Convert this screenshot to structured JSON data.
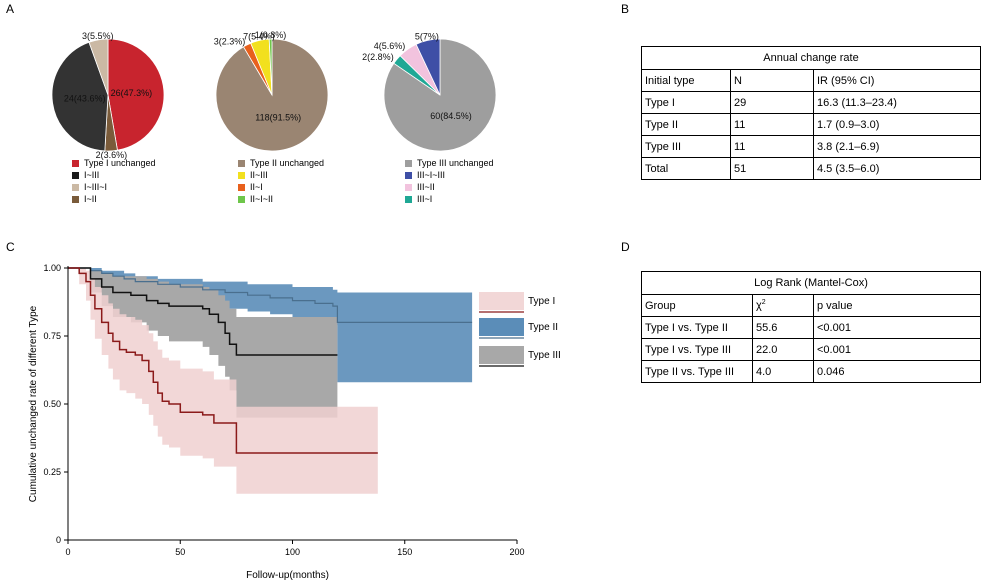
{
  "panels": {
    "a": "A",
    "b": "B",
    "c": "C",
    "d": "D"
  },
  "chart_data": [
    {
      "type": "pie",
      "slices": [
        {
          "label": "26(47.3%)",
          "value": 47.3,
          "color": "#c8242e"
        },
        {
          "label": "2(3.6%)",
          "value": 3.6,
          "color": "#7a5b3a"
        },
        {
          "label": "24(43.6%)",
          "value": 43.6,
          "color": "#333333"
        },
        {
          "label": "3(5.5%)",
          "value": 5.5,
          "color": "#cbb9a4"
        }
      ],
      "legend": [
        {
          "label": "Type I unchanged",
          "color": "#c8242e"
        },
        {
          "label": "I~III",
          "color": "#1a1a1a"
        },
        {
          "label": "I~III~I",
          "color": "#cbb9a4"
        },
        {
          "label": "I~II",
          "color": "#7a5b3a"
        }
      ]
    },
    {
      "type": "pie",
      "slices": [
        {
          "label": "118(91.5%)",
          "value": 91.5,
          "color": "#9a8572"
        },
        {
          "label": "3(2.3%)",
          "value": 2.3,
          "color": "#e8601c"
        },
        {
          "label": "7(5.4%)",
          "value": 5.4,
          "color": "#f2e01e"
        },
        {
          "label": "1(0.8%)",
          "value": 0.8,
          "color": "#6ec64a"
        }
      ],
      "legend": [
        {
          "label": "Type II unchanged",
          "color": "#9a8572"
        },
        {
          "label": "II~III",
          "color": "#f2e01e"
        },
        {
          "label": "II~I",
          "color": "#e8601c"
        },
        {
          "label": "II~I~II",
          "color": "#6ec64a"
        }
      ]
    },
    {
      "type": "pie",
      "slices": [
        {
          "label": "60(84.5%)",
          "value": 84.5,
          "color": "#9e9e9e"
        },
        {
          "label": "2(2.8%)",
          "value": 2.8,
          "color": "#1fa895"
        },
        {
          "label": "4(5.6%)",
          "value": 5.6,
          "color": "#f2c3de"
        },
        {
          "label": "5(7%)",
          "value": 7.0,
          "color": "#3e4fa6"
        }
      ],
      "legend": [
        {
          "label": "Type III unchanged",
          "color": "#9e9e9e"
        },
        {
          "label": "III~I~III",
          "color": "#3e4fa6"
        },
        {
          "label": "III~II",
          "color": "#f2c3de"
        },
        {
          "label": "III~I",
          "color": "#1fa895"
        }
      ]
    },
    {
      "type": "line",
      "subtype": "kaplan-meier",
      "xlabel": "Follow-up(months)",
      "ylabel": "Cumulative unchanged rate of different Type",
      "xlim": [
        0,
        200
      ],
      "ylim": [
        0,
        1.0
      ],
      "xticks": [
        "0",
        "50",
        "100",
        "150",
        "200"
      ],
      "yticks": [
        "0",
        "0.25",
        "0.50",
        "0.75",
        "1.00"
      ],
      "legend_position": "right",
      "series": [
        {
          "name": "Type I",
          "color": "#8b1a1a",
          "band_color": "#f0d0d0",
          "x": [
            0,
            5,
            8,
            10,
            12,
            15,
            18,
            20,
            23,
            26,
            30,
            33,
            36,
            38,
            40,
            42,
            45,
            50,
            55,
            60,
            65,
            70,
            75,
            80,
            100,
            120,
            138
          ],
          "y": [
            1.0,
            0.98,
            0.95,
            0.9,
            0.85,
            0.8,
            0.76,
            0.73,
            0.7,
            0.69,
            0.68,
            0.66,
            0.62,
            0.58,
            0.54,
            0.51,
            0.5,
            0.47,
            0.47,
            0.46,
            0.43,
            0.43,
            0.32,
            0.32,
            0.32,
            0.32,
            0.32
          ],
          "lower": [
            1.0,
            0.94,
            0.88,
            0.81,
            0.74,
            0.68,
            0.63,
            0.59,
            0.55,
            0.54,
            0.52,
            0.5,
            0.46,
            0.42,
            0.38,
            0.35,
            0.34,
            0.31,
            0.31,
            0.3,
            0.27,
            0.27,
            0.17,
            0.17,
            0.17,
            0.17,
            0.17
          ],
          "upper": [
            1.0,
            1.0,
            0.99,
            0.96,
            0.93,
            0.9,
            0.87,
            0.85,
            0.83,
            0.82,
            0.81,
            0.79,
            0.76,
            0.73,
            0.7,
            0.67,
            0.66,
            0.63,
            0.63,
            0.62,
            0.59,
            0.59,
            0.49,
            0.49,
            0.49,
            0.49,
            0.49
          ]
        },
        {
          "name": "Type II",
          "color": "#4a6f8e",
          "band_color": "#5b8db8",
          "x": [
            0,
            10,
            15,
            20,
            25,
            30,
            40,
            50,
            60,
            70,
            80,
            90,
            100,
            110,
            118,
            120,
            150,
            180
          ],
          "y": [
            1.0,
            0.99,
            0.98,
            0.97,
            0.96,
            0.95,
            0.94,
            0.93,
            0.92,
            0.91,
            0.9,
            0.89,
            0.88,
            0.87,
            0.86,
            0.8,
            0.8,
            0.8
          ],
          "lower": [
            1.0,
            0.98,
            0.96,
            0.94,
            0.92,
            0.91,
            0.89,
            0.88,
            0.86,
            0.85,
            0.84,
            0.83,
            0.81,
            0.8,
            0.79,
            0.58,
            0.58,
            0.58
          ],
          "upper": [
            1.0,
            1.0,
            0.99,
            0.99,
            0.98,
            0.97,
            0.96,
            0.96,
            0.95,
            0.95,
            0.94,
            0.94,
            0.93,
            0.93,
            0.92,
            0.91,
            0.91,
            0.91
          ]
        },
        {
          "name": "Type III",
          "color": "#111111",
          "band_color": "#a8a8a8",
          "x": [
            0,
            10,
            15,
            20,
            28,
            35,
            40,
            45,
            55,
            60,
            63,
            67,
            70,
            72,
            75,
            80,
            120
          ],
          "y": [
            1.0,
            0.96,
            0.93,
            0.91,
            0.9,
            0.88,
            0.87,
            0.86,
            0.86,
            0.85,
            0.83,
            0.8,
            0.76,
            0.72,
            0.68,
            0.68,
            0.68
          ],
          "lower": [
            1.0,
            0.91,
            0.86,
            0.82,
            0.8,
            0.77,
            0.75,
            0.73,
            0.73,
            0.71,
            0.68,
            0.64,
            0.6,
            0.55,
            0.45,
            0.45,
            0.45
          ],
          "upper": [
            1.0,
            0.99,
            0.98,
            0.97,
            0.97,
            0.96,
            0.95,
            0.94,
            0.94,
            0.93,
            0.92,
            0.9,
            0.88,
            0.85,
            0.82,
            0.82,
            0.82
          ]
        }
      ]
    }
  ],
  "tables": {
    "annual": {
      "title": "Annual change rate",
      "headers": [
        "Initial type",
        "N",
        "IR (95% CI)"
      ],
      "rows": [
        [
          "Type I",
          "29",
          "16.3 (11.3–23.4)"
        ],
        [
          "Type II",
          "11",
          "1.7 (0.9–3.0)"
        ],
        [
          "Type III",
          "11",
          "3.8 (2.1–6.9)"
        ],
        [
          "Total",
          "51",
          "4.5 (3.5–6.0)"
        ]
      ]
    },
    "logrank": {
      "title": "Log Rank (Mantel-Cox)",
      "headers": [
        "Group",
        "χ",
        "p value"
      ],
      "chi_superscript": "2",
      "rows": [
        [
          "Type I vs. Type II",
          "55.6",
          "<0.001"
        ],
        [
          "Type I vs. Type III",
          "22.0",
          "<0.001"
        ],
        [
          "Type II vs. Type III",
          "4.0",
          "0.046"
        ]
      ]
    }
  }
}
